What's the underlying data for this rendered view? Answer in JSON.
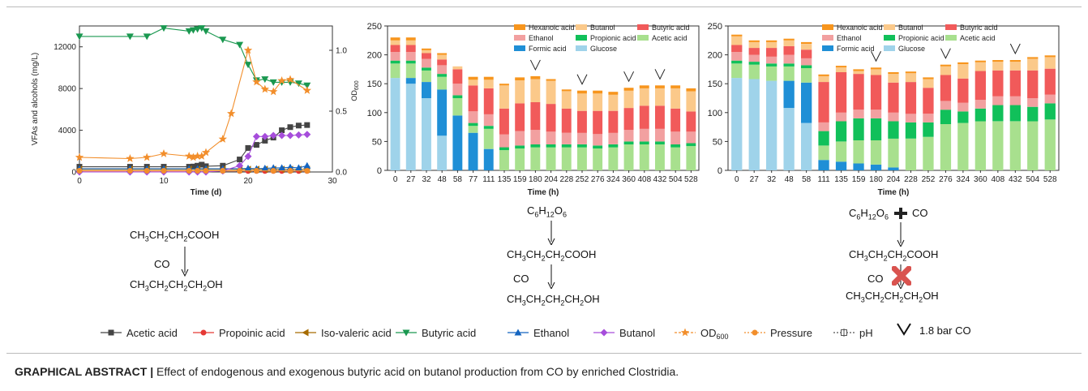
{
  "chart_data": [
    {
      "type": "line",
      "xlabel": "Time (d)",
      "ylabel": "VFAs and alcohols (mg/L)",
      "y2label": "OD600",
      "xlim": [
        0,
        30
      ],
      "ylim": [
        0,
        14000
      ],
      "y2lim": [
        0,
        1.2
      ],
      "xticks": [
        "0",
        "10",
        "20",
        "30"
      ],
      "yticks": [
        "0",
        "4000",
        "8000",
        "12000"
      ],
      "y2ticks": [
        "0.0",
        "0.5",
        "1.0"
      ],
      "series": [
        {
          "name": "Acetic acid",
          "color": "#444444",
          "marker": "square",
          "x": [
            0,
            6,
            8,
            10,
            13,
            13.5,
            14,
            14.5,
            15,
            17,
            19,
            20,
            21,
            22,
            23,
            24,
            25,
            26,
            27
          ],
          "y": [
            500,
            500,
            500,
            500,
            500,
            520,
            600,
            700,
            550,
            600,
            1200,
            2300,
            2600,
            3000,
            3300,
            4000,
            4300,
            4450,
            4500
          ]
        },
        {
          "name": "Propoinic acid",
          "color": "#e53935",
          "marker": "circle",
          "x": [
            0,
            6,
            8,
            10,
            13,
            14,
            15,
            17,
            19,
            20,
            21,
            22,
            23,
            24,
            25,
            26,
            27
          ],
          "y": [
            100,
            100,
            100,
            100,
            100,
            100,
            100,
            100,
            100,
            100,
            100,
            100,
            100,
            100,
            100,
            100,
            100
          ]
        },
        {
          "name": "Iso-valeric acid",
          "color": "#a66b00",
          "marker": "tri-left",
          "x": [
            0,
            6,
            8,
            10,
            13,
            14,
            15,
            17,
            19,
            20,
            21,
            22,
            23,
            24,
            25,
            26,
            27
          ],
          "y": [
            250,
            250,
            250,
            250,
            250,
            250,
            250,
            250,
            250,
            250,
            250,
            250,
            250,
            250,
            250,
            250,
            250
          ]
        },
        {
          "name": "Butyric acid",
          "color": "#1a9850",
          "marker": "tri-down",
          "x": [
            0,
            6,
            8,
            10,
            13,
            13.5,
            14,
            14.5,
            15,
            17,
            19,
            20,
            21,
            22,
            23,
            24,
            25,
            26,
            27
          ],
          "y": [
            13000,
            13000,
            13000,
            13800,
            13500,
            13600,
            13700,
            13800,
            13500,
            12700,
            12200,
            10300,
            8800,
            8900,
            8600,
            8600,
            8600,
            8500,
            8300
          ]
        },
        {
          "name": "Ethanol",
          "color": "#1565c0",
          "marker": "tri-up",
          "x": [
            0,
            6,
            8,
            10,
            13,
            14,
            15,
            17,
            19,
            20,
            21,
            22,
            23,
            24,
            25,
            26,
            27
          ],
          "y": [
            300,
            300,
            300,
            300,
            300,
            300,
            300,
            300,
            300,
            350,
            300,
            350,
            400,
            400,
            450,
            400,
            600
          ]
        },
        {
          "name": "Butanol",
          "color": "#a64ddb",
          "marker": "diamond",
          "x": [
            0,
            6,
            8,
            10,
            13,
            14,
            15,
            17,
            19,
            20,
            21,
            22,
            23,
            24,
            25,
            26,
            27
          ],
          "y": [
            0,
            0,
            0,
            0,
            0,
            0,
            0,
            100,
            600,
            1500,
            3400,
            3400,
            3500,
            3500,
            3500,
            3550,
            3600
          ]
        },
        {
          "name": "OD600",
          "color": "#f28e2b",
          "marker": "star",
          "axis": "right",
          "x": [
            0,
            6,
            8,
            10,
            13,
            13.5,
            14,
            14.5,
            15,
            17,
            18,
            20,
            21,
            22,
            23,
            24,
            25,
            27
          ],
          "y": [
            0.12,
            0.11,
            0.12,
            0.15,
            0.13,
            0.12,
            0.13,
            0.13,
            0.16,
            0.27,
            0.48,
            1.0,
            0.74,
            0.68,
            0.66,
            0.75,
            0.76,
            0.67
          ]
        },
        {
          "name": "Pressure",
          "color": "#f28e2b",
          "marker": "circle",
          "axis": "right",
          "x": [
            0,
            6,
            8,
            10,
            13,
            14,
            15,
            17,
            19,
            21,
            23,
            25,
            27
          ],
          "y": [
            0.01,
            0.01,
            0.01,
            0.01,
            0.01,
            0.01,
            0.01,
            0.01,
            0.01,
            0.01,
            0.01,
            0.01,
            0.01
          ]
        },
        {
          "name": "pH",
          "color": "#555555",
          "marker": "cross",
          "axis": "right",
          "x": [],
          "y": []
        }
      ]
    },
    {
      "type": "bar",
      "stacked": true,
      "xlabel": "Time (h)",
      "ylabel": "mmol· L⁻¹ C",
      "ylim": [
        0,
        250
      ],
      "yticks": [
        "0",
        "50",
        "100",
        "150",
        "200",
        "250"
      ],
      "categories": [
        "0",
        "27",
        "32",
        "48",
        "58",
        "77",
        "111",
        "135",
        "159",
        "180",
        "204",
        "228",
        "252",
        "276",
        "324",
        "360",
        "408",
        "432",
        "504",
        "528"
      ],
      "markers_at": [
        "180",
        "252",
        "360",
        "432"
      ],
      "series": [
        {
          "name": "Glucose",
          "color": "#9fd3ea",
          "values": [
            160,
            150,
            125,
            60,
            0,
            0,
            0,
            0,
            0,
            0,
            0,
            0,
            0,
            0,
            0,
            0,
            0,
            0,
            0,
            0
          ]
        },
        {
          "name": "Formic acid",
          "color": "#1f8fd6",
          "values": [
            0,
            10,
            28,
            80,
            95,
            65,
            37,
            0,
            0,
            0,
            0,
            0,
            0,
            0,
            0,
            0,
            0,
            0,
            0,
            0
          ]
        },
        {
          "name": "Acetic acid",
          "color": "#a8e08e",
          "values": [
            25,
            25,
            20,
            22,
            30,
            12,
            35,
            35,
            38,
            40,
            40,
            40,
            40,
            38,
            40,
            45,
            45,
            45,
            40,
            42
          ]
        },
        {
          "name": "Propionic acid",
          "color": "#11c05a",
          "values": [
            5,
            5,
            5,
            5,
            5,
            5,
            5,
            5,
            5,
            5,
            5,
            5,
            5,
            5,
            5,
            5,
            5,
            5,
            5,
            5
          ]
        },
        {
          "name": "Ethanol",
          "color": "#f2a0a0",
          "values": [
            15,
            15,
            15,
            15,
            20,
            20,
            20,
            22,
            25,
            25,
            22,
            20,
            20,
            20,
            20,
            20,
            22,
            22,
            22,
            20
          ]
        },
        {
          "name": "Butyric acid",
          "color": "#f15a5a",
          "values": [
            12,
            12,
            10,
            10,
            25,
            45,
            45,
            45,
            48,
            48,
            48,
            42,
            38,
            40,
            38,
            38,
            40,
            40,
            40,
            35
          ]
        },
        {
          "name": "Butanol",
          "color": "#fbc98a",
          "values": [
            8,
            8,
            5,
            8,
            5,
            10,
            15,
            40,
            40,
            40,
            40,
            30,
            30,
            30,
            28,
            30,
            30,
            30,
            35,
            35
          ]
        },
        {
          "name": "Hexanoic acid",
          "color": "#f7951d",
          "values": [
            5,
            5,
            3,
            3,
            0,
            5,
            5,
            3,
            5,
            5,
            3,
            3,
            5,
            5,
            5,
            5,
            5,
            5,
            5,
            5
          ]
        }
      ],
      "legend": [
        "Hexanoic acid",
        "Butanol",
        "Butyric acid",
        "Ethanol",
        "Propionic acid",
        "Acetic acid",
        "Formic acid",
        "Glucose"
      ]
    },
    {
      "type": "bar",
      "stacked": true,
      "xlabel": "Time (h)",
      "ylabel": "mmol· L⁻¹ C",
      "ylim": [
        0,
        250
      ],
      "yticks": [
        "0",
        "50",
        "100",
        "150",
        "200",
        "250"
      ],
      "categories": [
        "0",
        "27",
        "32",
        "48",
        "58",
        "111",
        "135",
        "159",
        "180",
        "204",
        "228",
        "252",
        "276",
        "324",
        "360",
        "408",
        "432",
        "504",
        "528"
      ],
      "markers_at": [
        "180",
        "276",
        "432"
      ],
      "series": [
        {
          "name": "Glucose",
          "color": "#9fd3ea",
          "values": [
            160,
            158,
            155,
            108,
            82,
            0,
            0,
            0,
            0,
            0,
            0,
            0,
            0,
            0,
            0,
            0,
            0,
            0,
            0
          ]
        },
        {
          "name": "Formic acid",
          "color": "#1f8fd6",
          "values": [
            0,
            0,
            0,
            47,
            70,
            18,
            15,
            12,
            10,
            5,
            0,
            0,
            0,
            0,
            0,
            0,
            0,
            0,
            0
          ]
        },
        {
          "name": "Acetic acid",
          "color": "#a8e08e",
          "values": [
            25,
            25,
            25,
            25,
            25,
            25,
            35,
            40,
            42,
            50,
            55,
            58,
            80,
            82,
            85,
            85,
            85,
            85,
            88
          ]
        },
        {
          "name": "Propionic acid",
          "color": "#11c05a",
          "values": [
            5,
            5,
            5,
            5,
            5,
            25,
            35,
            38,
            38,
            30,
            28,
            25,
            25,
            20,
            22,
            28,
            28,
            25,
            28
          ]
        },
        {
          "name": "Ethanol",
          "color": "#f2a0a0",
          "values": [
            15,
            12,
            12,
            15,
            12,
            15,
            15,
            15,
            15,
            15,
            15,
            15,
            15,
            15,
            15,
            15,
            15,
            15,
            15
          ]
        },
        {
          "name": "Butyric acid",
          "color": "#f15a5a",
          "values": [
            12,
            12,
            15,
            15,
            15,
            70,
            70,
            62,
            60,
            52,
            55,
            45,
            45,
            42,
            50,
            45,
            45,
            48,
            45
          ]
        },
        {
          "name": "Butanol",
          "color": "#fbc98a",
          "values": [
            15,
            10,
            10,
            10,
            10,
            10,
            8,
            5,
            10,
            15,
            15,
            15,
            15,
            25,
            15,
            15,
            15,
            20,
            20
          ]
        },
        {
          "name": "Hexanoic acid",
          "color": "#f7951d",
          "values": [
            3,
            3,
            3,
            3,
            3,
            3,
            3,
            3,
            3,
            3,
            3,
            3,
            3,
            3,
            3,
            3,
            3,
            3,
            3
          ]
        }
      ],
      "legend": [
        "Hexanoic acid",
        "Butanol",
        "Butyric acid",
        "Ethanol",
        "Propionic acid",
        "Acetic acid",
        "Formic acid",
        "Glucose"
      ]
    }
  ],
  "schemes": {
    "left": {
      "acid": "CH3CH2CH2COOH",
      "gas": "CO",
      "alcohol": "CH3CH2CH2CH2OH"
    },
    "middle": {
      "substrate": "C6H12O6",
      "acid": "CH3CH2CH2COOH",
      "gas": "CO",
      "alcohol": "CH3CH2CH2CH2OH"
    },
    "right": {
      "substrate": "C6H12O6",
      "plus": "+",
      "gas_top": "CO",
      "acid": "CH3CH2CH2COOH",
      "gas": "CO",
      "alcohol": "CH3CH2CH2CH2OH"
    }
  },
  "bottom_legend": [
    "Acetic acid",
    "Propoinic acid",
    "Iso-valeric acid",
    "Butyric acid",
    "Ethanol",
    "Butanol",
    "OD600",
    "Pressure",
    "pH"
  ],
  "co_marker_label": "1.8 bar CO",
  "caption": {
    "label": "GRAPHICAL ABSTRACT |",
    "text": "Effect of endogenous and exogenous butyric acid on butanol production from CO by enriched Clostridia."
  }
}
